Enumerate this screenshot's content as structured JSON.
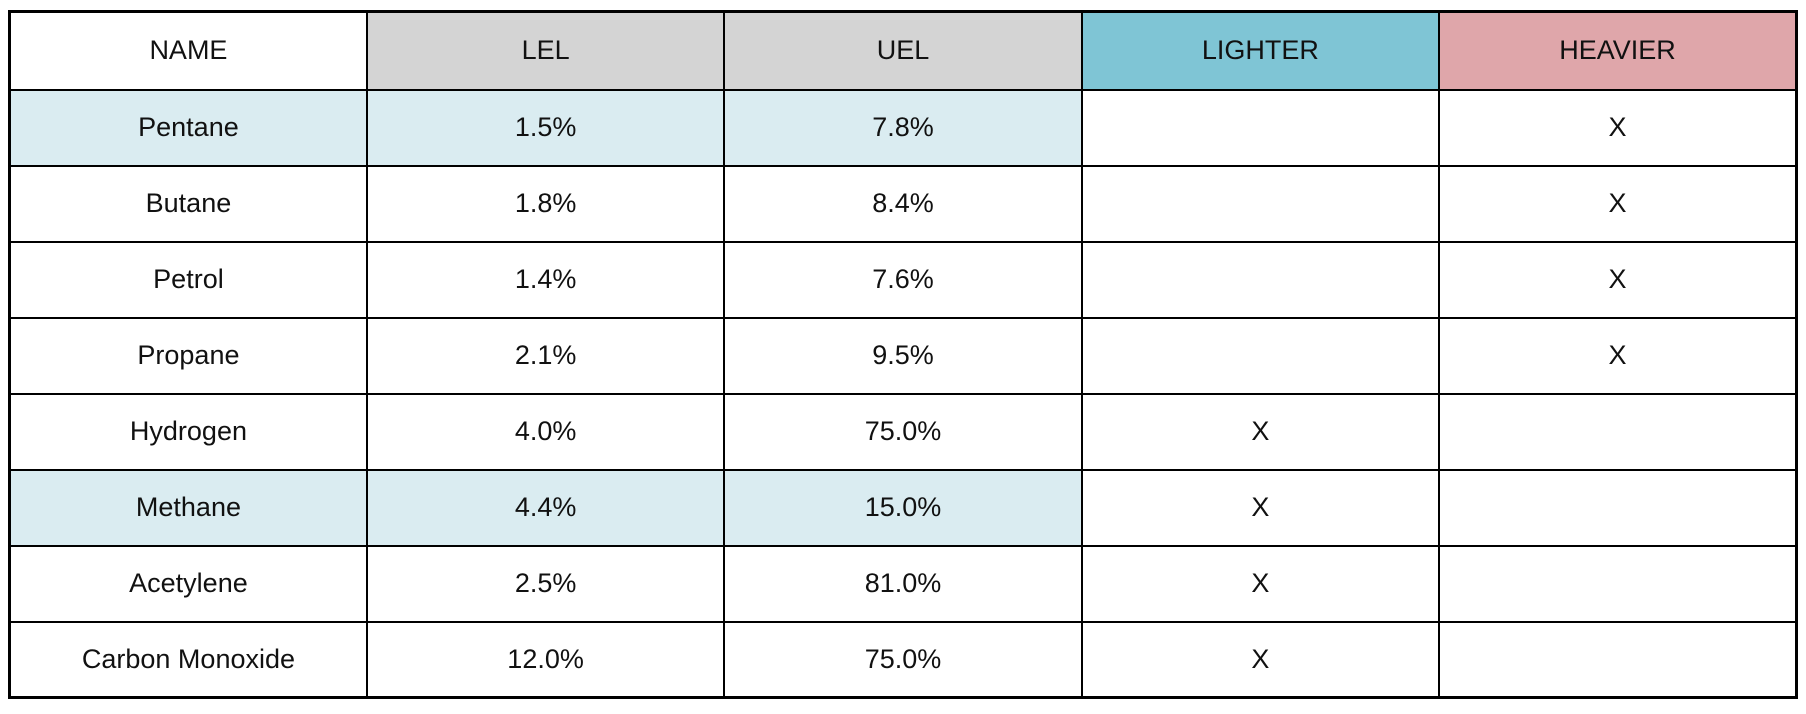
{
  "colors": {
    "header_gray": "#d4d4d4",
    "header_teal": "#7fc5d5",
    "header_pink": "#dfa6aa",
    "row_highlight": "#daecf1",
    "border": "#000000",
    "background": "#ffffff",
    "text": "#111111"
  },
  "table": {
    "columns": [
      "NAME",
      "LEL",
      "UEL",
      "LIGHTER",
      "HEAVIER"
    ],
    "rows": [
      {
        "name": "Pentane",
        "lel": "1.5%",
        "uel": "7.8%",
        "lighter": "",
        "heavier": "X",
        "highlighted": true
      },
      {
        "name": "Butane",
        "lel": "1.8%",
        "uel": "8.4%",
        "lighter": "",
        "heavier": "X",
        "highlighted": false
      },
      {
        "name": "Petrol",
        "lel": "1.4%",
        "uel": "7.6%",
        "lighter": "",
        "heavier": "X",
        "highlighted": false
      },
      {
        "name": "Propane",
        "lel": "2.1%",
        "uel": "9.5%",
        "lighter": "",
        "heavier": "X",
        "highlighted": false
      },
      {
        "name": "Hydrogen",
        "lel": "4.0%",
        "uel": "75.0%",
        "lighter": "X",
        "heavier": "",
        "highlighted": false
      },
      {
        "name": "Methane",
        "lel": "4.4%",
        "uel": "15.0%",
        "lighter": "X",
        "heavier": "",
        "highlighted": true
      },
      {
        "name": "Acetylene",
        "lel": "2.5%",
        "uel": "81.0%",
        "lighter": "X",
        "heavier": "",
        "highlighted": false
      },
      {
        "name": "Carbon Monoxide",
        "lel": "12.0%",
        "uel": "75.0%",
        "lighter": "X",
        "heavier": "",
        "highlighted": false
      }
    ]
  },
  "chart_data": {
    "type": "table",
    "title": "",
    "columns": [
      "NAME",
      "LEL",
      "UEL",
      "LIGHTER",
      "HEAVIER"
    ],
    "rows": [
      [
        "Pentane",
        "1.5%",
        "7.8%",
        "",
        "X"
      ],
      [
        "Butane",
        "1.8%",
        "8.4%",
        "",
        "X"
      ],
      [
        "Petrol",
        "1.4%",
        "7.6%",
        "",
        "X"
      ],
      [
        "Propane",
        "2.1%",
        "9.5%",
        "",
        "X"
      ],
      [
        "Hydrogen",
        "4.0%",
        "75.0%",
        "X",
        ""
      ],
      [
        "Methane",
        "4.4%",
        "15.0%",
        "X",
        ""
      ],
      [
        "Acetylene",
        "2.5%",
        "81.0%",
        "X",
        ""
      ],
      [
        "Carbon Monoxide",
        "12.0%",
        "75.0%",
        "X",
        ""
      ]
    ],
    "highlighted_rows": [
      "Pentane",
      "Methane"
    ],
    "lel_values_pct": [
      1.5,
      1.8,
      1.4,
      2.1,
      4.0,
      4.4,
      2.5,
      12.0
    ],
    "uel_values_pct": [
      7.8,
      8.4,
      7.6,
      9.5,
      75.0,
      15.0,
      81.0,
      75.0
    ]
  }
}
